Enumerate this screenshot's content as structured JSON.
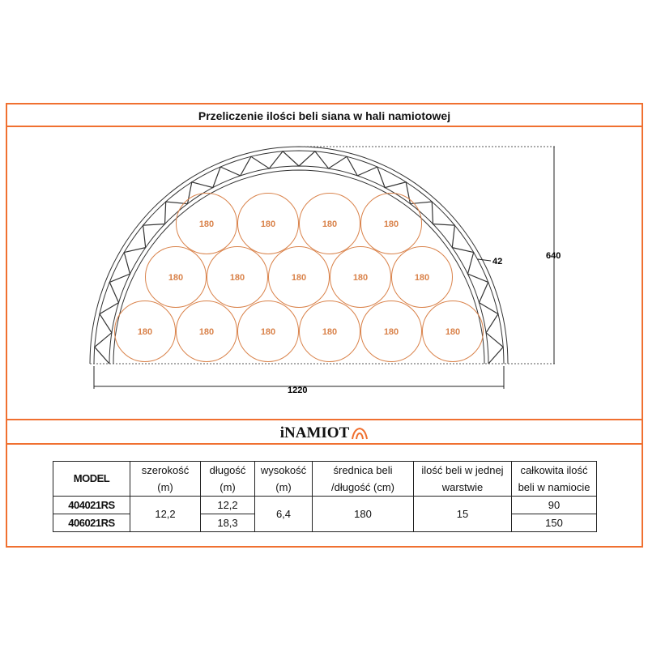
{
  "title": "Przeliczenie ilości beli siana w hali namiotowej",
  "diagram": {
    "bale_rows": [
      [
        "180",
        "180",
        "180",
        "180"
      ],
      [
        "180",
        "180",
        "180",
        "180",
        "180"
      ],
      [
        "180",
        "180",
        "180",
        "180",
        "180",
        "180"
      ]
    ],
    "height_label": "640",
    "width_label": "1220",
    "truss_label": "42"
  },
  "logo": "iNAMIOT",
  "colors": {
    "accent": "#f07030",
    "bale": "#d9824a"
  },
  "table": {
    "headers": {
      "model": "MODEL",
      "width_1": "szerokość",
      "width_2": "(m)",
      "length_1": "długość",
      "length_2": "(m)",
      "height_1": "wysokość",
      "height_2": "(m)",
      "diam_1": "średnica beli",
      "diam_2": "/długość (cm)",
      "layer_1": "ilość beli w jednej",
      "layer_2": "warstwie",
      "total_1": "całkowita ilość",
      "total_2": "beli w namiocie"
    },
    "rows": [
      {
        "model": "404021RS",
        "length": "12,2",
        "total": "90"
      },
      {
        "model": "406021RS",
        "length": "18,3",
        "total": "150"
      }
    ],
    "shared": {
      "width": "12,2",
      "height": "6,4",
      "diam": "180",
      "layer": "15"
    }
  }
}
